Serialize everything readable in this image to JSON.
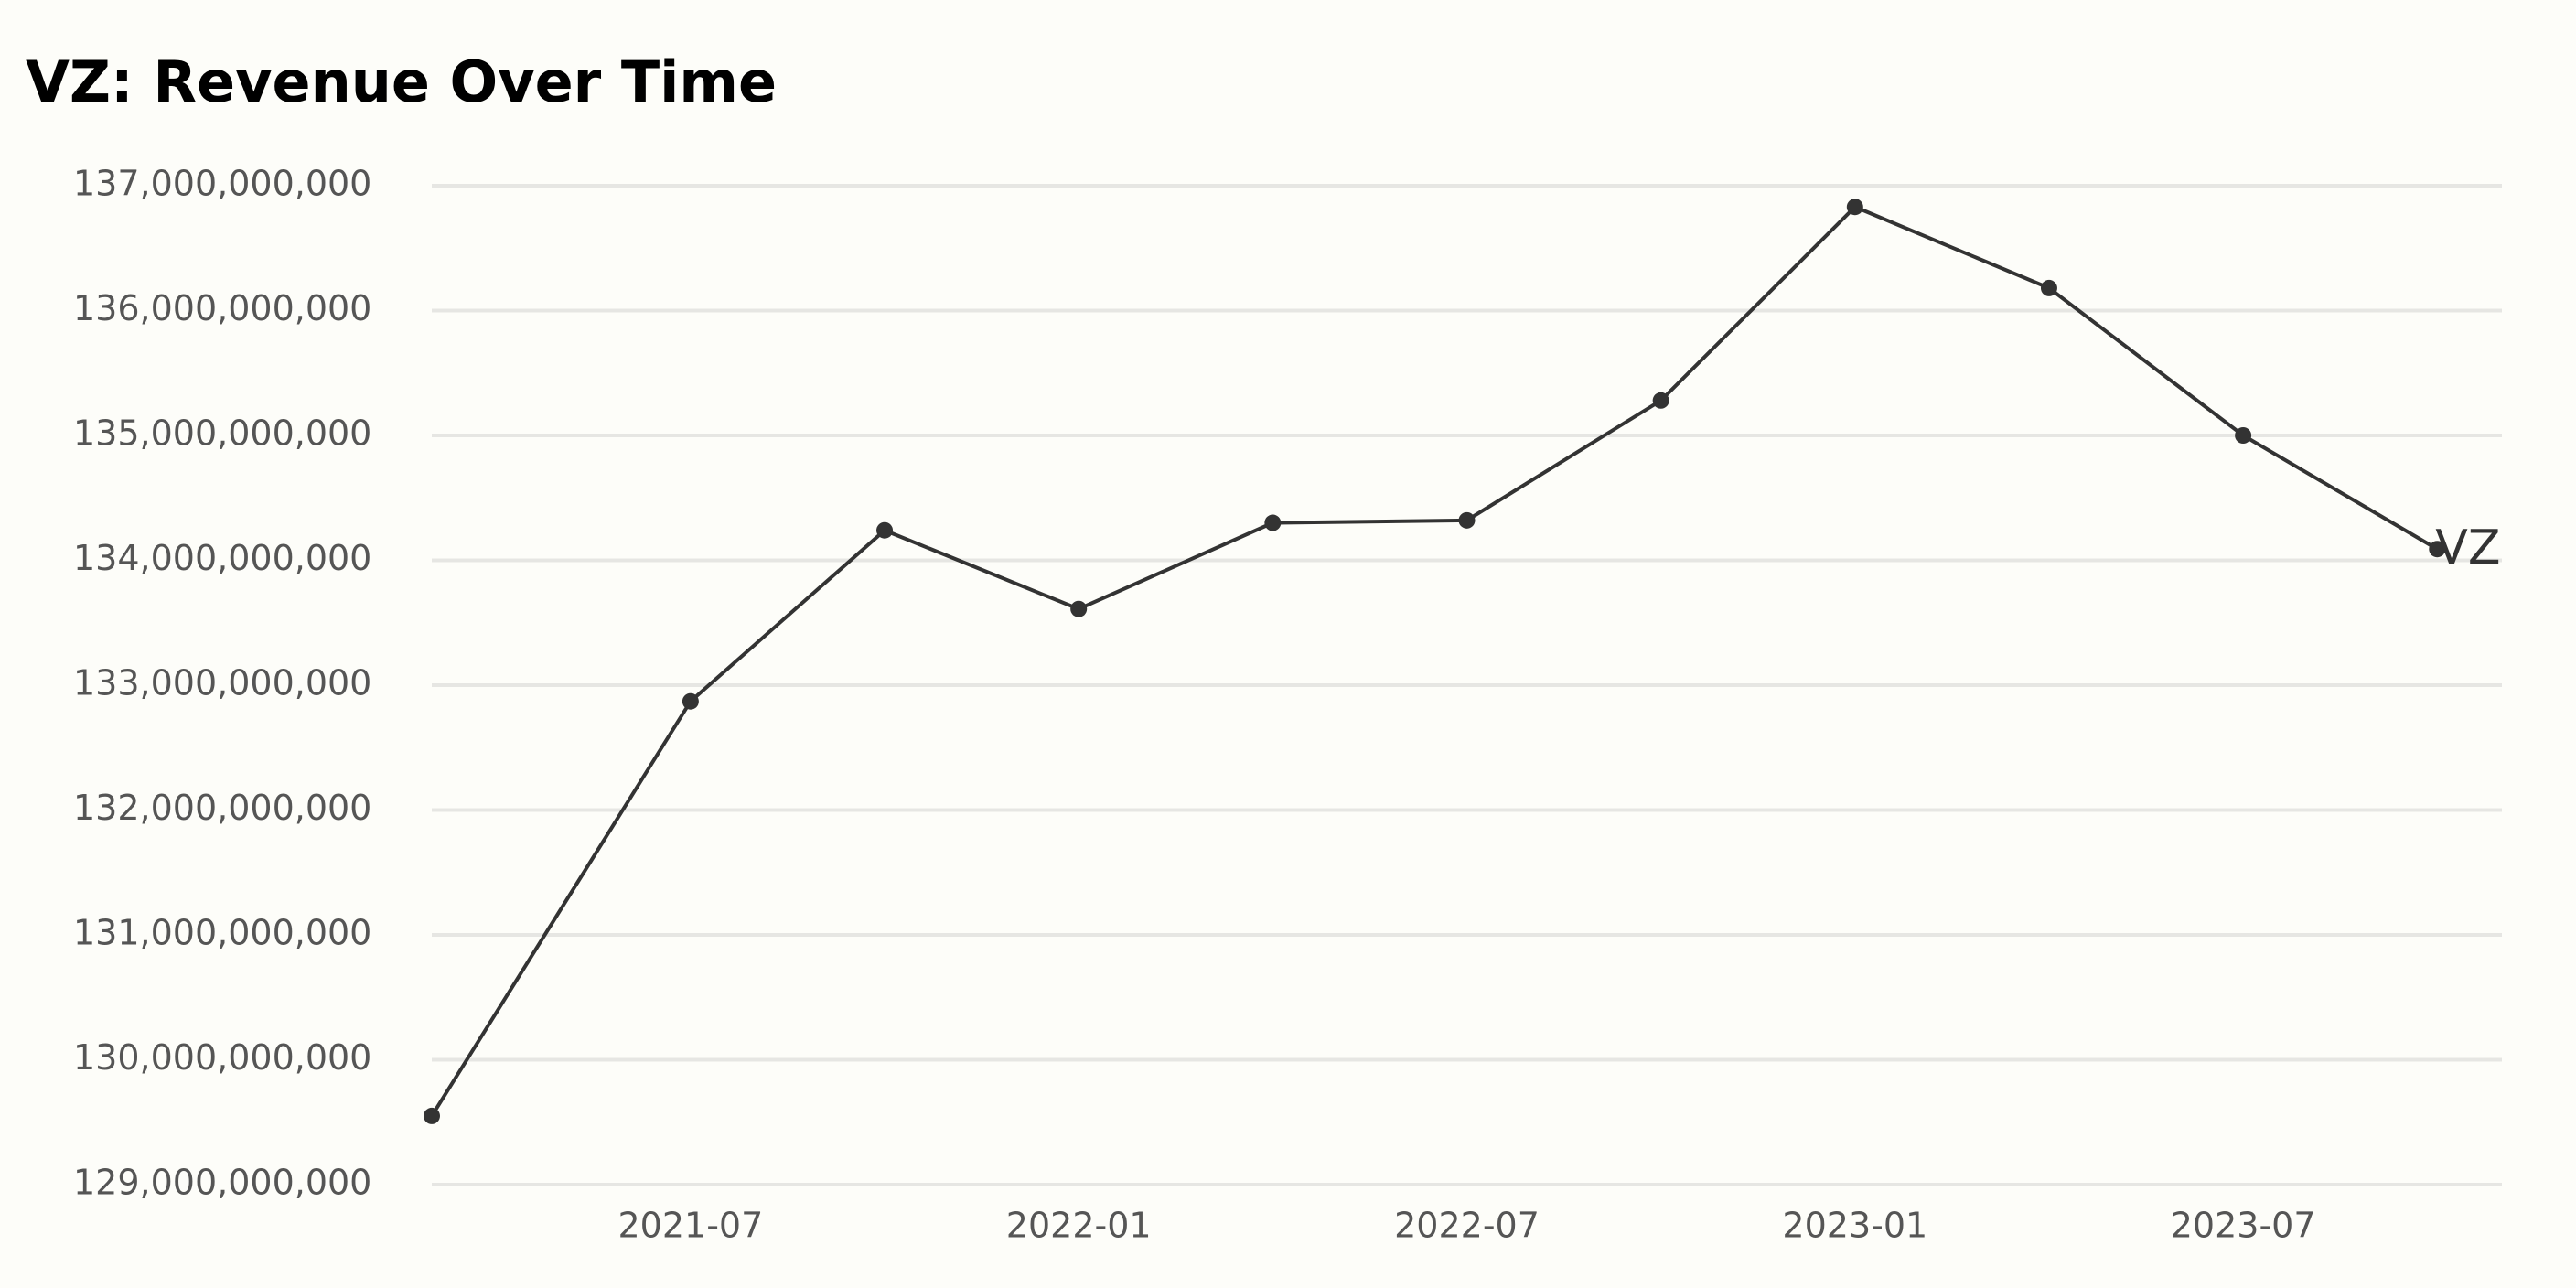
{
  "chart_data": {
    "type": "line",
    "title": "VZ: Revenue Over Time",
    "x": [
      "2021-03",
      "2021-07",
      "2021-10",
      "2022-01",
      "2022-04",
      "2022-07",
      "2022-10",
      "2023-01",
      "2023-04",
      "2023-07",
      "2023-10"
    ],
    "series": [
      {
        "name": "VZ",
        "color": "#333333",
        "values": [
          129550000000,
          132870000000,
          134240000000,
          133610000000,
          134300000000,
          134320000000,
          135280000000,
          136830000000,
          136180000000,
          135000000000,
          134090000000
        ]
      }
    ],
    "xlim": [
      "2021-03",
      "2023-11"
    ],
    "xticks": [
      "2021-07",
      "2022-01",
      "2022-07",
      "2023-01",
      "2023-07"
    ],
    "ylim": [
      129000000000,
      137000000000
    ],
    "yticks": [
      {
        "value": 129000000000,
        "label": "129,000,000,000"
      },
      {
        "value": 130000000000,
        "label": "130,000,000,000"
      },
      {
        "value": 131000000000,
        "label": "131,000,000,000"
      },
      {
        "value": 132000000000,
        "label": "132,000,000,000"
      },
      {
        "value": 133000000000,
        "label": "133,000,000,000"
      },
      {
        "value": 134000000000,
        "label": "134,000,000,000"
      },
      {
        "value": 135000000000,
        "label": "135,000,000,000"
      },
      {
        "value": 136000000000,
        "label": "136,000,000,000"
      },
      {
        "value": 137000000000,
        "label": "137,000,000,000"
      }
    ],
    "grid": true
  }
}
